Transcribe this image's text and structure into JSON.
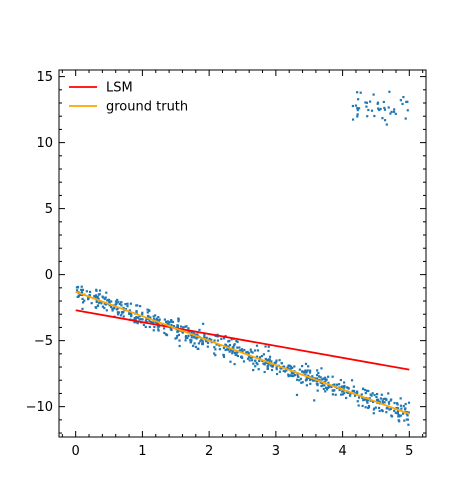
{
  "chart_data": {
    "type": "scatter",
    "title": "",
    "xlabel": "",
    "ylabel": "",
    "xlim": [
      -0.25,
      5.25
    ],
    "ylim": [
      -12.3,
      15.5
    ],
    "x_ticks": [
      0,
      1,
      2,
      3,
      4,
      5
    ],
    "x_tick_labels": [
      "0",
      "1",
      "2",
      "3",
      "4",
      "5"
    ],
    "y_ticks": [
      -10,
      -5,
      0,
      5,
      10,
      15
    ],
    "y_tick_labels": [
      "−10",
      "−5",
      "0",
      "5",
      "10",
      "15"
    ],
    "grid": false,
    "legend_position": "top-left",
    "scatter": {
      "color": "#1f77b4",
      "points_main": {
        "x_range": [
          0,
          5
        ],
        "count": 700,
        "trend_slope": -1.85,
        "trend_intercept": -1.3,
        "spread": 0.4
      },
      "points_outliers": {
        "x_range": [
          4.15,
          5
        ],
        "count": 45,
        "y_center": 12.7,
        "spread": 0.55
      }
    },
    "series": [
      {
        "name": "LSM",
        "color": "#ff0000",
        "x": [
          0,
          5
        ],
        "y": [
          -2.7,
          -7.2
        ]
      },
      {
        "name": "ground truth",
        "color": "#ffa500",
        "x": [
          0,
          5
        ],
        "y": [
          -1.3,
          -10.55
        ]
      }
    ]
  }
}
